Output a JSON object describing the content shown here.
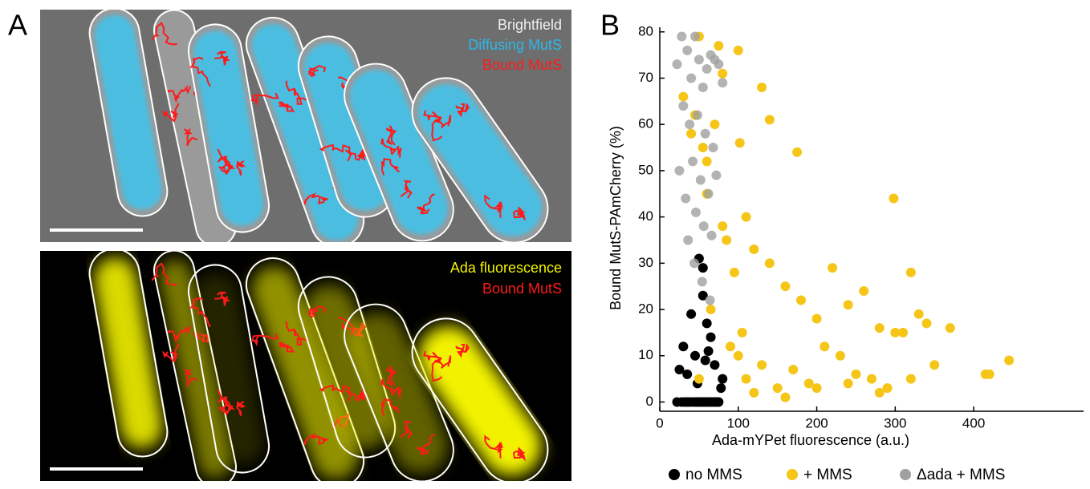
{
  "panel_labels": [
    "A",
    "B"
  ],
  "brightfield_panel": {
    "labels": [
      "Brightfield",
      "Diffusing MutS",
      "Bound MutS"
    ]
  },
  "fluorescence_panel": {
    "labels": [
      "Ada fluorescence",
      "Bound MutS"
    ]
  },
  "chart_data": {
    "type": "scatter",
    "x_label": "Ada-mYPet fluorescence (a.u.)",
    "y_label": "Bound MutS-PAmCherry (%)",
    "xlim": [
      0,
      540
    ],
    "ylim": [
      -2,
      81
    ],
    "xticks": [
      0,
      100,
      200,
      300,
      400
    ],
    "yticks": [
      0,
      10,
      20,
      30,
      40,
      50,
      60,
      70,
      80
    ],
    "legend": "bottom",
    "series": [
      {
        "name": "no MMS",
        "color": "#000000",
        "x": [
          22,
          28,
          32,
          35,
          38,
          42,
          45,
          48,
          50,
          52,
          55,
          58,
          60,
          62,
          65,
          68,
          70,
          72,
          75,
          78,
          80,
          30,
          40,
          50,
          55,
          60,
          45,
          65,
          35,
          70,
          25,
          55,
          48,
          62,
          58
        ],
        "values": [
          0,
          0,
          0,
          0,
          0,
          0,
          0,
          0,
          0,
          0,
          0,
          0,
          0,
          0,
          0,
          0,
          0,
          0,
          0,
          3,
          5,
          12,
          19,
          31,
          23,
          17,
          10,
          14,
          6,
          8,
          7,
          29,
          4,
          11,
          9
        ]
      },
      {
        "name": "+ MMS",
        "color": "#f5c518",
        "x": [
          30,
          45,
          50,
          55,
          60,
          70,
          75,
          80,
          85,
          100,
          102,
          130,
          140,
          175,
          298,
          40,
          60,
          80,
          110,
          120,
          140,
          160,
          180,
          200,
          220,
          240,
          260,
          280,
          300,
          320,
          340,
          370,
          415,
          445,
          90,
          100,
          110,
          130,
          150,
          170,
          190,
          210,
          230,
          250,
          270,
          290,
          310,
          330,
          350,
          420,
          120,
          160,
          200,
          240,
          280,
          320,
          50,
          65,
          95,
          105
        ],
        "values": [
          66,
          62,
          79,
          55,
          52,
          60,
          77,
          71,
          35,
          76,
          56,
          68,
          61,
          54,
          44,
          58,
          45,
          38,
          40,
          33,
          30,
          25,
          22,
          18,
          29,
          21,
          24,
          16,
          15,
          28,
          17,
          16,
          6,
          9,
          12,
          10,
          5,
          8,
          3,
          7,
          4,
          12,
          10,
          6,
          5,
          3,
          15,
          19,
          8,
          6,
          2,
          1,
          3,
          4,
          2,
          5,
          5,
          20,
          28,
          15
        ]
      },
      {
        "name": "Δada + MMS",
        "color": "#a0a0a0",
        "x": [
          22,
          28,
          35,
          40,
          45,
          50,
          55,
          60,
          65,
          70,
          75,
          80,
          30,
          38,
          48,
          58,
          68,
          25,
          42,
          52,
          62,
          72,
          33,
          46,
          56,
          66,
          44,
          54,
          64,
          36
        ],
        "values": [
          73,
          79,
          76,
          70,
          79,
          74,
          68,
          72,
          75,
          74,
          73,
          69,
          64,
          60,
          62,
          58,
          55,
          50,
          52,
          48,
          45,
          49,
          44,
          41,
          38,
          36,
          30,
          26,
          22,
          35
        ]
      }
    ]
  }
}
